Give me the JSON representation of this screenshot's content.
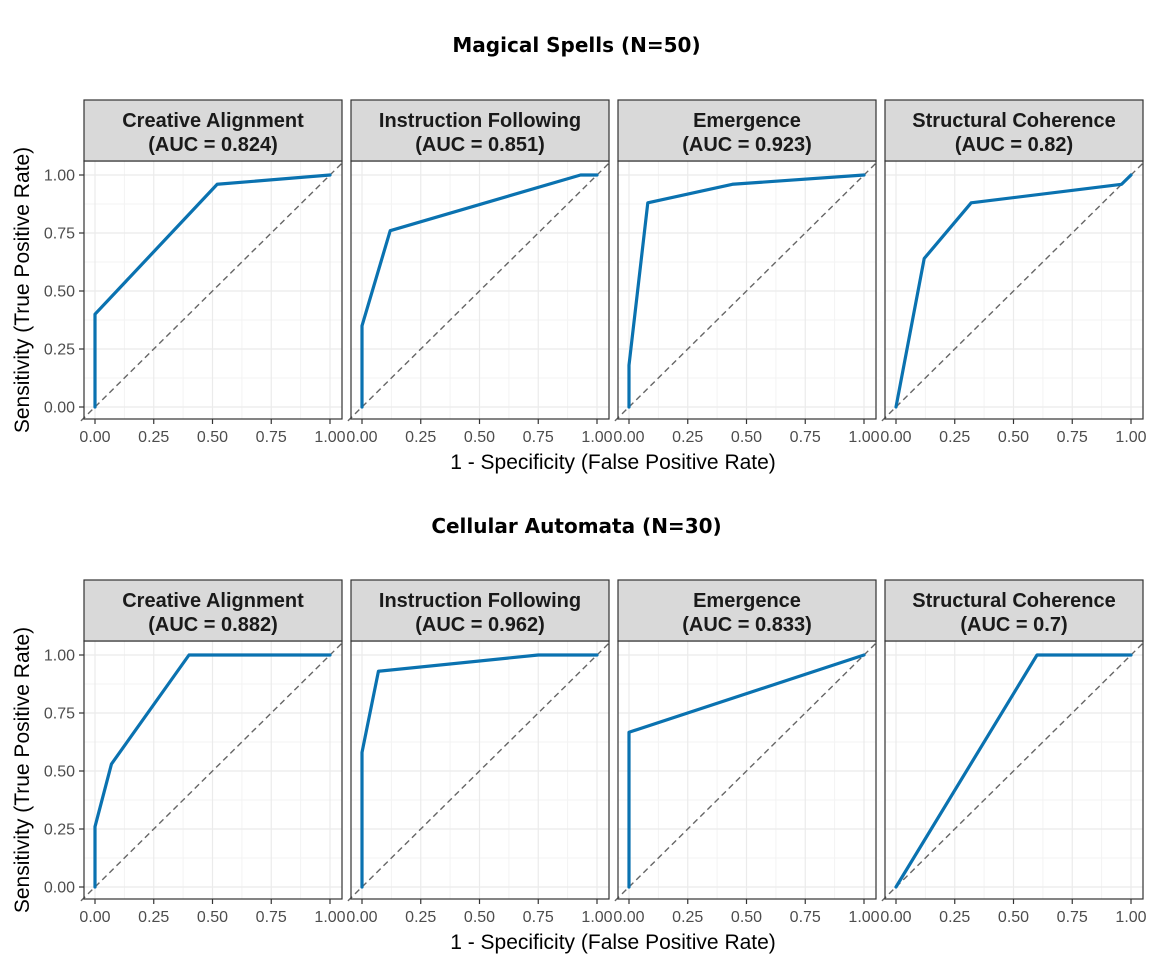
{
  "chart_data": [
    {
      "type": "line",
      "title": "Magical Spells (N=50)",
      "xlabel": "1 - Specificity (False Positive Rate)",
      "ylabel": "Sensitivity (True Positive Rate)",
      "xlim": [
        0,
        1
      ],
      "ylim": [
        0,
        1
      ],
      "ticks": [
        "0.00",
        "0.25",
        "0.50",
        "0.75",
        "1.00"
      ],
      "grid": true,
      "line_color": "#0a72b0",
      "diagonal_color": "#666666",
      "panels": [
        {
          "strip": "Creative Alignment",
          "auc": "(AUC = 0.824)",
          "points": [
            [
              0,
              0
            ],
            [
              0,
              0.4
            ],
            [
              0.52,
              0.96
            ],
            [
              1,
              1
            ]
          ]
        },
        {
          "strip": "Instruction Following",
          "auc": "(AUC = 0.851)",
          "points": [
            [
              0,
              0
            ],
            [
              0,
              0.35
            ],
            [
              0.12,
              0.76
            ],
            [
              0.93,
              1
            ],
            [
              1,
              1
            ]
          ]
        },
        {
          "strip": "Emergence",
          "auc": "(AUC = 0.923)",
          "points": [
            [
              0,
              0
            ],
            [
              0,
              0.18
            ],
            [
              0.08,
              0.88
            ],
            [
              0.44,
              0.96
            ],
            [
              1,
              1
            ]
          ]
        },
        {
          "strip": "Structural Coherence",
          "auc": "(AUC = 0.82)",
          "points": [
            [
              0,
              0
            ],
            [
              0.12,
              0.64
            ],
            [
              0.32,
              0.88
            ],
            [
              0.96,
              0.96
            ],
            [
              1,
              1
            ]
          ]
        }
      ]
    },
    {
      "type": "line",
      "title": "Cellular Automata (N=30)",
      "xlabel": "1 - Specificity (False Positive Rate)",
      "ylabel": "Sensitivity (True Positive Rate)",
      "xlim": [
        0,
        1
      ],
      "ylim": [
        0,
        1
      ],
      "ticks": [
        "0.00",
        "0.25",
        "0.50",
        "0.75",
        "1.00"
      ],
      "grid": true,
      "line_color": "#0a72b0",
      "diagonal_color": "#666666",
      "panels": [
        {
          "strip": "Creative Alignment",
          "auc": "(AUC = 0.882)",
          "points": [
            [
              0,
              0
            ],
            [
              0,
              0.26
            ],
            [
              0.07,
              0.53
            ],
            [
              0.4,
              1
            ],
            [
              1,
              1
            ]
          ]
        },
        {
          "strip": "Instruction Following",
          "auc": "(AUC = 0.962)",
          "points": [
            [
              0,
              0
            ],
            [
              0,
              0.58
            ],
            [
              0.07,
              0.93
            ],
            [
              0.75,
              1
            ],
            [
              1,
              1
            ]
          ]
        },
        {
          "strip": "Emergence",
          "auc": "(AUC = 0.833)",
          "points": [
            [
              0,
              0
            ],
            [
              0,
              0.667
            ],
            [
              1,
              1
            ]
          ]
        },
        {
          "strip": "Structural Coherence",
          "auc": "(AUC = 0.7)",
          "points": [
            [
              0,
              0
            ],
            [
              0.6,
              1
            ],
            [
              1,
              1
            ]
          ]
        }
      ]
    }
  ]
}
